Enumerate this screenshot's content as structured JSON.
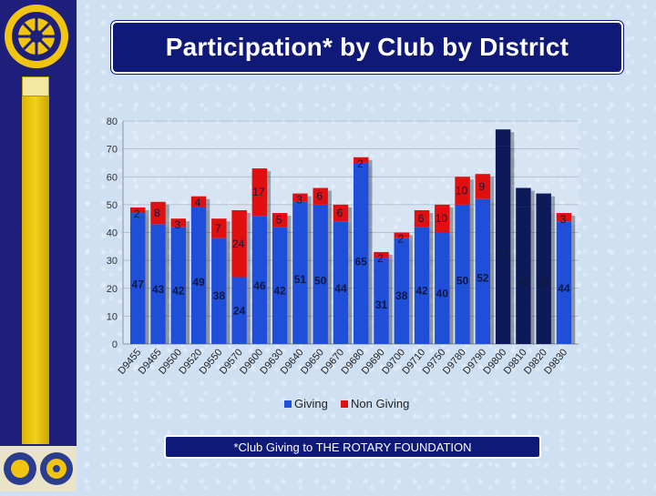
{
  "title": "Participation* by Club by District",
  "footnote": "*Club Giving to THE ROTARY FOUNDATION",
  "colors": {
    "giving": "#1f4fd8",
    "non_giving": "#e01010",
    "highlight": "#0c1a5a"
  },
  "chart_data": {
    "type": "bar",
    "stacked": true,
    "title": "Participation* by Club by District",
    "categories": [
      "D9455",
      "D9465",
      "D9500",
      "D9520",
      "D9550",
      "D9570",
      "D9600",
      "D9630",
      "D9640",
      "D9650",
      "D9670",
      "D9680",
      "D9690",
      "D9700",
      "D9710",
      "D9750",
      "D9780",
      "D9790",
      "D9800",
      "D9810",
      "D9820",
      "D9830"
    ],
    "series": [
      {
        "name": "Giving",
        "values": [
          47,
          43,
          42,
          49,
          38,
          24,
          46,
          42,
          51,
          50,
          44,
          65,
          31,
          38,
          42,
          40,
          50,
          52,
          71,
          49,
          48,
          44
        ]
      },
      {
        "name": "Non Giving",
        "values": [
          2,
          8,
          3,
          4,
          7,
          24,
          17,
          5,
          3,
          6,
          6,
          2,
          2,
          2,
          6,
          10,
          10,
          9,
          6,
          7,
          6,
          3
        ]
      }
    ],
    "highlight_categories": [
      "D9800",
      "D9810",
      "D9820"
    ],
    "ylim": [
      0,
      80
    ],
    "yticks": [
      0,
      10,
      20,
      30,
      40,
      50,
      60,
      70,
      80
    ],
    "legend": [
      "Giving",
      "Non Giving"
    ],
    "legend_position": "bottom",
    "xlabel": "",
    "ylabel": ""
  }
}
